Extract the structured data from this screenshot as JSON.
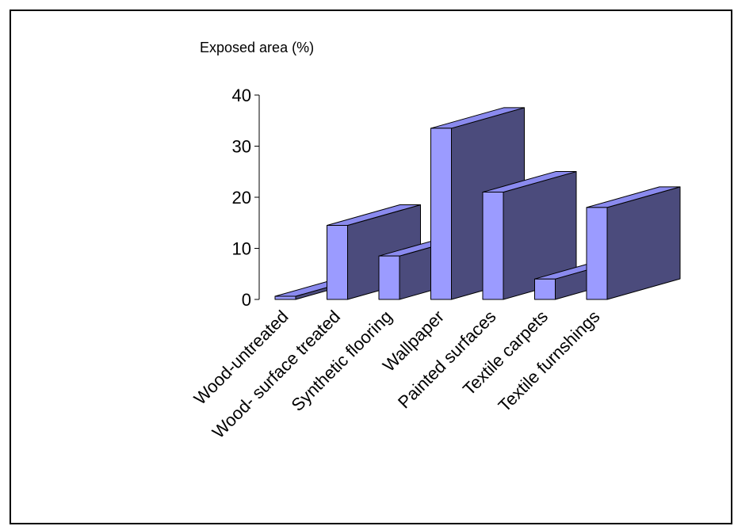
{
  "chart_data": {
    "type": "bar",
    "style": "3d-column",
    "ylabel": "Exposed area (%)",
    "ylim": [
      0,
      40
    ],
    "yticks": [
      0,
      10,
      20,
      30,
      40
    ],
    "categories": [
      "Wood-untreated",
      "Wood- surface treated",
      "Synthetic flooring",
      "Wallpaper",
      "Painted surfaces",
      "Textile carpets",
      "Textile furnshings"
    ],
    "values": [
      0.5,
      14.5,
      8.5,
      33.5,
      21,
      4,
      18
    ],
    "colors": {
      "front": "#9b9bff",
      "side": "#4b4b7c",
      "top": "#8a8aee"
    }
  }
}
